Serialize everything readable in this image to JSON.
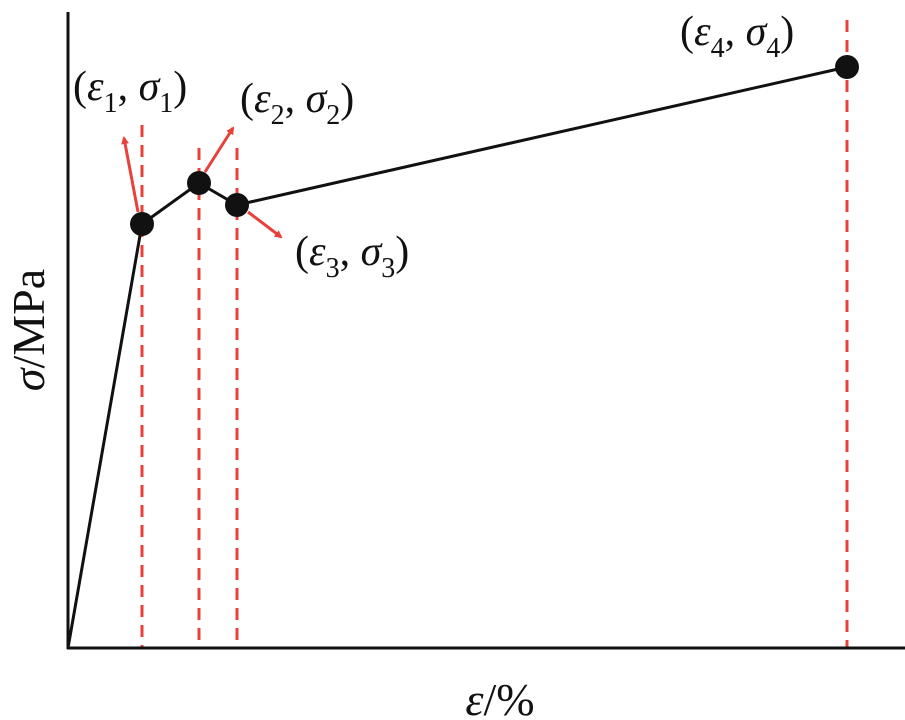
{
  "axes": {
    "y_label": [
      "σ",
      "/MPa"
    ],
    "x_label": [
      "ε",
      "/%"
    ]
  },
  "points": [
    {
      "label": [
        "(",
        "ε",
        "1",
        ", ",
        "σ",
        "1",
        ")"
      ]
    },
    {
      "label": [
        "(",
        "ε",
        "2",
        ", ",
        "σ",
        "2",
        ")"
      ]
    },
    {
      "label": [
        "(",
        "ε",
        "3",
        ", ",
        "σ",
        "3",
        ")"
      ]
    },
    {
      "label": [
        "(",
        "ε",
        "4",
        ", ",
        "σ",
        "4",
        ")"
      ]
    }
  ]
}
